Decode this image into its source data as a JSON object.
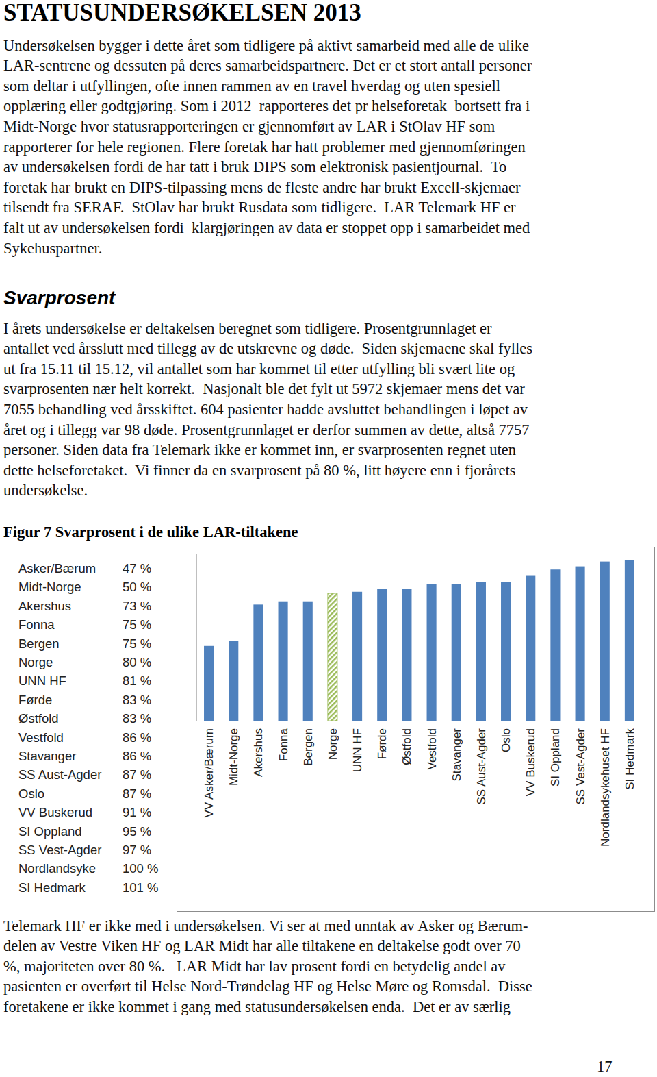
{
  "title": "STATUSUNDERSØKELSEN 2013",
  "intro": {
    "lines": [
      "Undersøkelsen bygger i dette året som tidligere på aktivt samarbeid med alle de ulike",
      "LAR-sentrene og dessuten på deres samarbeidspartnere. Det er et stort antall personer",
      "som deltar i utfyllingen, ofte innen rammen av en travel hverdag og uten spesiell",
      "opplæring eller godtgjøring. Som i 2012  rapporteres det pr helseforetak  bortsett fra i",
      "Midt-Norge hvor statusrapporteringen er gjennomført av LAR i StOlav HF som",
      "rapporterer for hele regionen. Flere foretak har hatt problemer med gjennomføringen",
      "av undersøkelsen fordi de har tatt i bruk DIPS som elektronisk pasientjournal.  To",
      "foretak har brukt en DIPS-tilpassing mens de fleste andre har brukt Excell-skjemaer",
      "tilsendt fra SERAF.  StOlav har brukt Rusdata som tidligere.  LAR Telemark HF er",
      "falt ut av undersøkelsen fordi  klargjøringen av data er stoppet opp i samarbeidet med",
      "Sykehuspartner."
    ]
  },
  "section_heading": "Svarprosent",
  "section": {
    "lines": [
      "I årets undersøkelse er deltakelsen beregnet som tidligere. Prosentgrunnlaget er",
      "antallet ved årsslutt med tillegg av de utskrevne og døde.  Siden skjemaene skal fylles",
      "ut fra 15.11 til 15.12, vil antallet som har kommet til etter utfylling bli svært lite og",
      "svarprosenten nær helt korrekt.  Nasjonalt ble det fylt ut 5972 skjemaer mens det var",
      "7055 behandling ved årsskiftet. 604 pasienter hadde avsluttet behandlingen i løpet av",
      "året og i tillegg var 98 døde. Prosentgrunnlaget er derfor summen av dette, altså 7757",
      "personer. Siden data fra Telemark ikke er kommet inn, er svarprosenten regnet uten",
      "dette helseforetaket.  Vi finner da en svarprosent på 80 %, litt høyere enn i fjorårets",
      "undersøkelse."
    ]
  },
  "figure_caption": "Figur 7 Svarprosent i de ulike LAR-tiltakene",
  "figure_table": {
    "rows": [
      [
        "Asker/Bærum",
        "47 %"
      ],
      [
        "Midt-Norge",
        "50 %"
      ],
      [
        "Akershus",
        "73 %"
      ],
      [
        "Fonna",
        "75 %"
      ],
      [
        "Bergen",
        "75 %"
      ],
      [
        "Norge",
        "80 %"
      ],
      [
        "UNN HF",
        "81 %"
      ],
      [
        "Førde",
        "83 %"
      ],
      [
        "Østfold",
        "83 %"
      ],
      [
        "Vestfold",
        "86 %"
      ],
      [
        "Stavanger",
        "86 %"
      ],
      [
        "SS Aust-Agder",
        "87 %"
      ],
      [
        "Oslo",
        "87 %"
      ],
      [
        "VV Buskerud",
        "91 %"
      ],
      [
        "SI Oppland",
        "95 %"
      ],
      [
        "SS Vest-Agder",
        "97 %"
      ],
      [
        "Nordlandsyke",
        "100 %"
      ],
      [
        "SI Hedmark",
        "101 %"
      ]
    ]
  },
  "chart_data": {
    "type": "bar",
    "categories": [
      "VV Asker/Bærum",
      "Midt-Norge",
      "Akershus",
      "Fonna",
      "Bergen",
      "Norge",
      "UNN HF",
      "Førde",
      "Østfold",
      "Vestfold",
      "Stavanger",
      "SS Aust-Agder",
      "Oslo",
      "VV Buskerud",
      "SI Oppland",
      "SS Vest-Agder",
      "Nordlandsykehuset HF",
      "SI Hedmark"
    ],
    "values": [
      47,
      50,
      73,
      75,
      75,
      80,
      81,
      83,
      83,
      86,
      86,
      87,
      87,
      91,
      95,
      97,
      100,
      101
    ],
    "color": "#4f81bd",
    "colors": [
      "#4f81bd",
      "#4f81bd",
      "#4f81bd",
      "#4f81bd",
      "#4f81bd",
      "#9bbb59",
      "#4f81bd",
      "#4f81bd",
      "#4f81bd",
      "#4f81bd",
      "#4f81bd",
      "#4f81bd",
      "#4f81bd",
      "#4f81bd",
      "#4f81bd",
      "#4f81bd",
      "#4f81bd",
      "#4f81bd"
    ],
    "ylim": [
      0,
      105
    ],
    "yticks": [],
    "grid": false,
    "tick_labels": "x"
  },
  "closing": {
    "lines": [
      "Telemark HF er ikke med i undersøkelsen. Vi ser at med unntak av Asker og Bærum-",
      "delen av Vestre Viken HF og LAR Midt har alle tiltakene en deltakelse godt over 70",
      "%, majoriteten over 80 %.   LAR Midt har lav prosent fordi en betydelig andel av",
      "pasienten er overført til Helse Nord-Trøndelag HF og Helse Møre og Romsdal.  Disse",
      "foretakene er ikke kommet i gang med statusundersøkelsen enda.  Det er av særlig"
    ]
  },
  "page_number": "17"
}
